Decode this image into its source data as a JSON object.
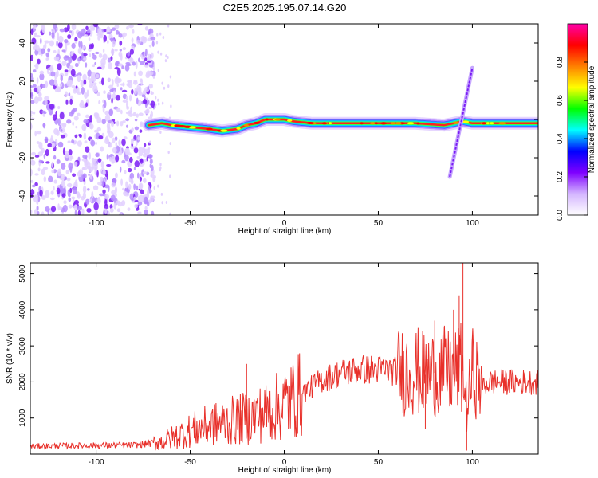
{
  "title": "C2E5.2025.195.07.14.G20",
  "chart_data": [
    {
      "type": "heatmap",
      "xlabel": "Height of straight line (km)",
      "ylabel": "Frequency (Hz)",
      "xlim": [
        -135,
        135
      ],
      "ylim": [
        -50,
        50
      ],
      "xticks": [
        -100,
        -50,
        0,
        50,
        100
      ],
      "yticks": [
        -40,
        -20,
        0,
        20,
        40
      ],
      "colorbar": {
        "label": "Normalized spectral amplitude",
        "range": [
          0,
          1
        ],
        "ticks": [
          "0.0",
          "0.2",
          "0.4",
          "0.6",
          "0.8"
        ],
        "colors": [
          "#ffffff",
          "#d4b6ff",
          "#7f00ff",
          "#0000ff",
          "#00ffff",
          "#00ff00",
          "#ffff00",
          "#ff8000",
          "#ff0000",
          "#ff00aa"
        ]
      },
      "ridge": {
        "x": [
          -72,
          -65,
          -60,
          -50,
          -40,
          -33,
          -25,
          -20,
          -15,
          -10,
          -5,
          0,
          5,
          15,
          30,
          50,
          70,
          85,
          95,
          100,
          110,
          120,
          135
        ],
        "frequency": [
          -3,
          -2,
          -3,
          -4,
          -5,
          -6,
          -5,
          -3,
          -2,
          0,
          0,
          0,
          -1,
          -2,
          -2,
          -2,
          -2,
          -3,
          -1,
          -2,
          -2,
          -2,
          -2
        ]
      },
      "chirp": {
        "x": [
          88,
          100
        ],
        "frequency": [
          -30,
          27
        ]
      },
      "noise_region": {
        "x": [
          -135,
          -72
        ],
        "frequency": [
          -50,
          50
        ]
      }
    },
    {
      "type": "line",
      "xlabel": "Height of straight line (km)",
      "ylabel": "SNR (10 * v/v)",
      "xlim": [
        -135,
        135
      ],
      "ylim": [
        0,
        5300
      ],
      "xticks": [
        -100,
        -50,
        0,
        50,
        100
      ],
      "yticks": [
        1000,
        2000,
        3000,
        4000,
        5000
      ],
      "series": [
        {
          "color": "#e8302a",
          "x": [
            -135,
            -120,
            -100,
            -80,
            -70,
            -65,
            -60,
            -50,
            -40,
            -30,
            -20,
            -10,
            0,
            10,
            20,
            30,
            40,
            50,
            60,
            70,
            75,
            80,
            85,
            90,
            93,
            95,
            97,
            100,
            105,
            110,
            120,
            135
          ],
          "y": [
            220,
            230,
            240,
            250,
            300,
            350,
            450,
            650,
            800,
            900,
            1000,
            1150,
            1400,
            1700,
            2050,
            2250,
            2350,
            2350,
            2300,
            2300,
            2200,
            2250,
            2300,
            2200,
            2400,
            2300,
            1200,
            2300,
            1900,
            2000,
            2000,
            2000
          ],
          "spikes": [
            {
              "x": 95,
              "y": 5300
            },
            {
              "x": 97,
              "y": 100
            },
            {
              "x": 93,
              "y": 4400
            },
            {
              "x": 90,
              "y": 4000
            },
            {
              "x": 80,
              "y": 3700
            },
            {
              "x": 75,
              "y": 700
            },
            {
              "x": 100,
              "y": 3200
            },
            {
              "x": -20,
              "y": 2500
            }
          ]
        }
      ]
    }
  ]
}
